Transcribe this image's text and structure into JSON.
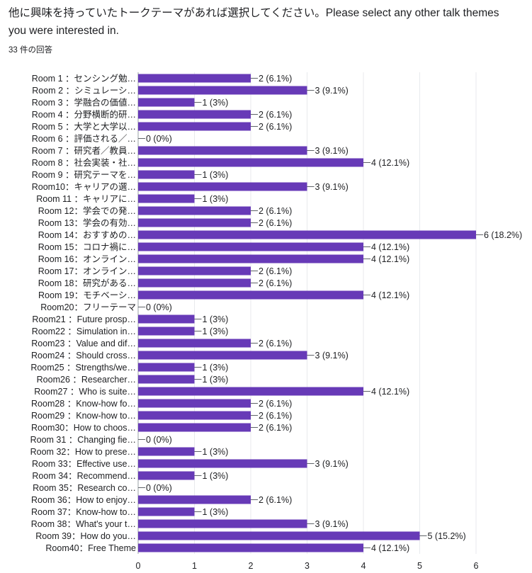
{
  "header": {
    "question": "他に興味を持っていたトークテーマがあれば選択してください。Please select any other talk themes you were interested in.",
    "response_count": "33 件の回答"
  },
  "colors": {
    "bar": "#673ab7",
    "grid": "#e8eaed",
    "text": "#202124"
  },
  "chart_data": {
    "type": "bar",
    "orientation": "horizontal",
    "grid": true,
    "xlim": [
      0,
      6
    ],
    "ticks": [
      "0",
      "1",
      "2",
      "3",
      "4",
      "5",
      "6"
    ],
    "categories": [
      "Room 1 ：センシング勉…",
      "Room 2 ：シミュレーシ…",
      "Room 3 ：学融合の価値…",
      "Room 4 ：分野横断的研…",
      "Room 5 ：大学と大学以…",
      "Room 6 ：評価される／…",
      "Room 7 ：研究者／教員…",
      "Room 8 ：社会実装・社…",
      "Room 9 ：研究テーマを…",
      "Room10：キャリアの選…",
      "Room 11 ：キャリアに…",
      "Room 12：学会での発…",
      "Room 13：学会の有効…",
      "Room 14：おすすめの…",
      "Room 15：コロナ禍に…",
      "Room 16：オンライン…",
      "Room 17：オンライン…",
      "Room 18：研究がある…",
      "Room 19：モチベーシ…",
      "Room20：フリーテーマ",
      "Room21 ：Future prosp…",
      "Room22 ：Simulation in…",
      "Room23 ：Value and dif…",
      "Room24 ：Should cross…",
      "Room25 ：Strengths/we…",
      "Room26 ：Researcher…",
      "Room27 ：Who is suite…",
      "Room28 ：Know-how fo…",
      "Room29 ：Know-how to…",
      "Room30：How to choos…",
      "Room 31 ：Changing fie…",
      "Room 32：How to prese…",
      "Room 33：Effective use…",
      "Room 34：Recommend…",
      "Room 35：Research co…",
      "Room 36：How to enjoy…",
      "Room 37：Know-how to…",
      "Room 38：What's your t…",
      "Room 39：How do you…",
      "Room40：Free Theme"
    ],
    "values": [
      2,
      3,
      1,
      2,
      2,
      0,
      3,
      4,
      1,
      3,
      1,
      2,
      2,
      6,
      4,
      4,
      2,
      2,
      4,
      0,
      1,
      1,
      2,
      3,
      1,
      1,
      4,
      2,
      2,
      2,
      0,
      1,
      3,
      1,
      0,
      2,
      1,
      3,
      5,
      4
    ],
    "data_labels": [
      "2 (6.1%)",
      "3 (9.1%)",
      "1 (3%)",
      "2 (6.1%)",
      "2 (6.1%)",
      "0 (0%)",
      "3 (9.1%)",
      "4 (12.1%)",
      "1 (3%)",
      "3 (9.1%)",
      "1 (3%)",
      "2 (6.1%)",
      "2 (6.1%)",
      "6 (18.2%)",
      "4 (12.1%)",
      "4 (12.1%)",
      "2 (6.1%)",
      "2 (6.1%)",
      "4 (12.1%)",
      "0 (0%)",
      "1 (3%)",
      "1 (3%)",
      "2 (6.1%)",
      "3 (9.1%)",
      "1 (3%)",
      "1 (3%)",
      "4 (12.1%)",
      "2 (6.1%)",
      "2 (6.1%)",
      "2 (6.1%)",
      "0 (0%)",
      "1 (3%)",
      "3 (9.1%)",
      "1 (3%)",
      "0 (0%)",
      "2 (6.1%)",
      "1 (3%)",
      "3 (9.1%)",
      "5 (15.2%)",
      "4 (12.1%)"
    ]
  }
}
